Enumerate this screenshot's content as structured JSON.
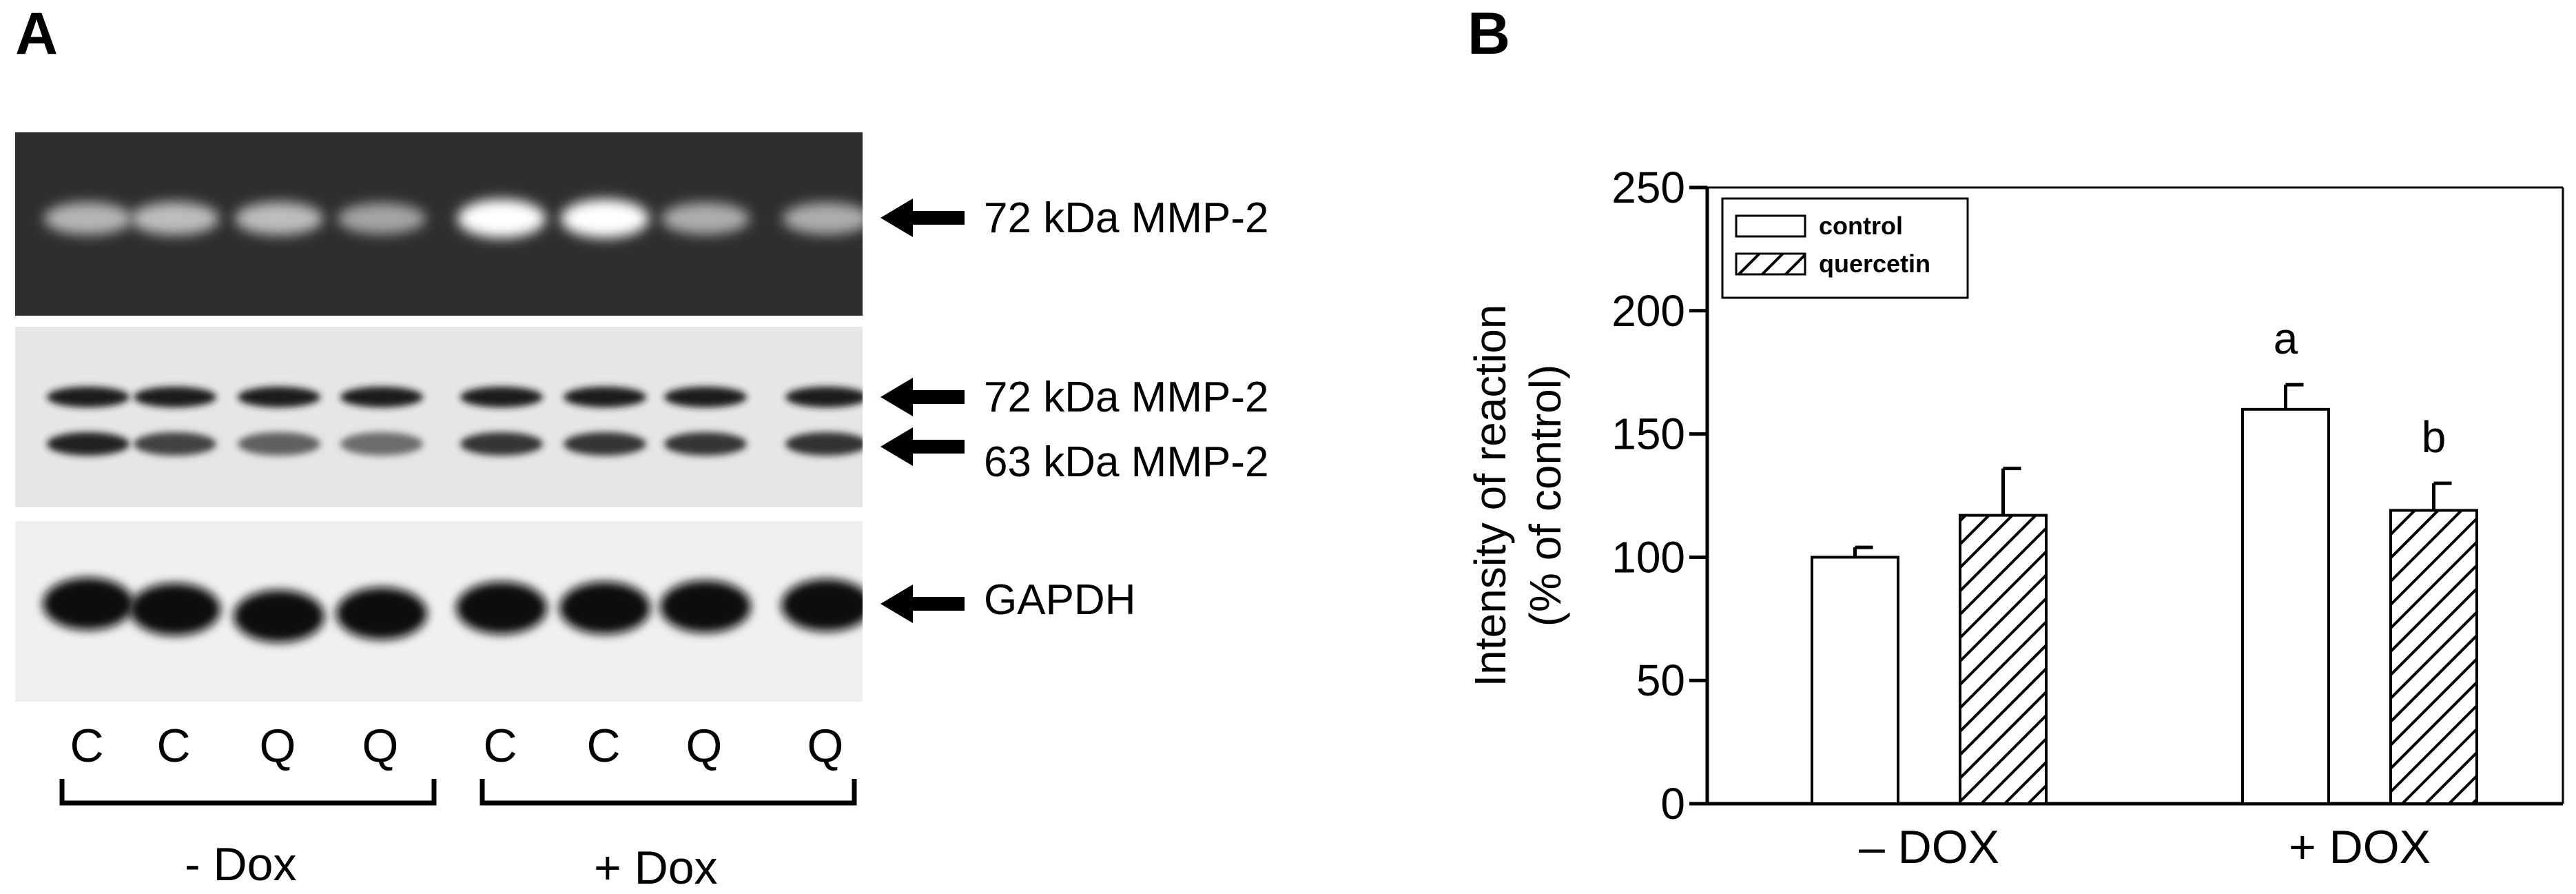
{
  "panels": {
    "a": "A",
    "b": "B"
  },
  "blot": {
    "band_labels": [
      "72 kDa MMP-2",
      "72 kDa MMP-2",
      "63 kDa MMP-2",
      "GAPDH"
    ],
    "lanes": [
      "C",
      "C",
      "Q",
      "Q",
      "C",
      "C",
      "Q",
      "Q"
    ],
    "groups": [
      "- Dox",
      "+ Dox"
    ],
    "zymogram_intensity": [
      0.55,
      0.6,
      0.6,
      0.45,
      1.0,
      1.0,
      0.5,
      0.5
    ]
  },
  "chart_data": {
    "type": "bar",
    "categories": [
      "– DOX",
      "+ DOX"
    ],
    "series": [
      {
        "name": "control",
        "values": [
          100,
          160
        ],
        "errors": [
          4,
          10
        ],
        "pattern": "solid"
      },
      {
        "name": "quercetin",
        "values": [
          117,
          119
        ],
        "errors": [
          19,
          11
        ],
        "pattern": "hatched"
      }
    ],
    "ylabel_line1": "Intensity of reaction",
    "ylabel_line2": "(% of control)",
    "ylim": [
      0,
      250
    ],
    "yticks": [
      0,
      50,
      100,
      150,
      200,
      250
    ],
    "annotations": [
      {
        "category": 1,
        "series": 0,
        "text": "a"
      },
      {
        "category": 1,
        "series": 1,
        "text": "b"
      }
    ],
    "legend_position": "top-left"
  }
}
